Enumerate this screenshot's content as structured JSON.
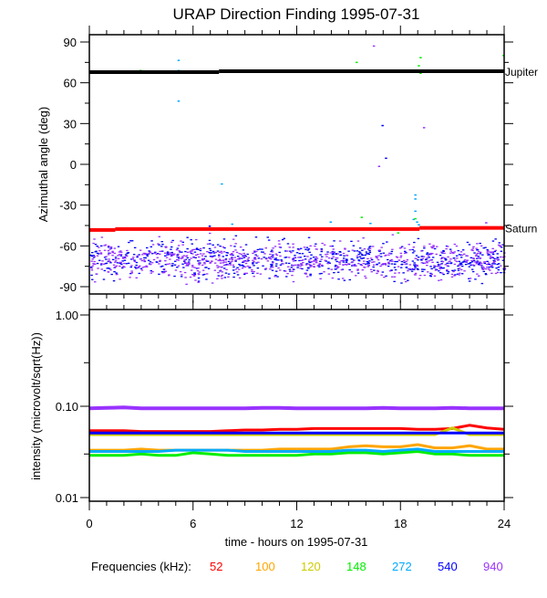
{
  "chart_data": [
    {
      "type": "scatter",
      "title": "URAP Direction Finding  1995-07-31",
      "xlabel": "",
      "ylabel": "Azimuthal angle (deg)",
      "xlim": [
        0,
        24
      ],
      "ylim": [
        -90,
        90
      ],
      "yticks": [
        "90",
        "60",
        "30",
        "0",
        "-30",
        "-60",
        "-90"
      ],
      "reference_lines": [
        {
          "name": "Jupiter",
          "color": "#000000",
          "segments": [
            [
              0,
              7.5,
              67.8
            ],
            [
              7.5,
              24,
              68.5
            ]
          ]
        },
        {
          "name": "Saturn",
          "color": "#ff0000",
          "segments": [
            [
              0,
              1.5,
              -48.3
            ],
            [
              1.5,
              19.1,
              -47.6
            ],
            [
              19.1,
              24,
              -46.8
            ]
          ]
        }
      ],
      "scatter_cluster": {
        "series": [
          "540",
          "940"
        ],
        "x_range": [
          0,
          24
        ],
        "center": -70,
        "spread": 9,
        "count_per_series": 700
      },
      "outlier_points": [
        {
          "series": "148",
          "x": 2.9,
          "y": 69.5
        },
        {
          "series": "272",
          "x": 5.1,
          "y": 77
        },
        {
          "series": "272",
          "x": 5.1,
          "y": 69.5
        },
        {
          "series": "272",
          "x": 5.1,
          "y": 47
        },
        {
          "series": "272",
          "x": 7.6,
          "y": -14
        },
        {
          "series": "148",
          "x": 15.4,
          "y": 75.5
        },
        {
          "series": "148",
          "x": 15.4,
          "y": 69.5
        },
        {
          "series": "940",
          "x": 16.4,
          "y": 87.5
        },
        {
          "series": "540",
          "x": 16.9,
          "y": 29
        },
        {
          "series": "540",
          "x": 17.1,
          "y": 5
        },
        {
          "series": "940",
          "x": 16.7,
          "y": -1
        },
        {
          "series": "940",
          "x": 19.3,
          "y": 27.5
        },
        {
          "series": "148",
          "x": 19.1,
          "y": 79
        },
        {
          "series": "148",
          "x": 19.0,
          "y": 73
        },
        {
          "series": "148",
          "x": 19.1,
          "y": 67.5
        },
        {
          "series": "272",
          "x": 18.8,
          "y": -22
        },
        {
          "series": "272",
          "x": 18.8,
          "y": -25
        },
        {
          "series": "272",
          "x": 18.8,
          "y": -34
        },
        {
          "series": "272",
          "x": 18.7,
          "y": -40
        },
        {
          "series": "272",
          "x": 18.9,
          "y": -42
        },
        {
          "series": "272",
          "x": 19.0,
          "y": -44
        },
        {
          "series": "148",
          "x": 18.8,
          "y": -39.5
        },
        {
          "series": "148",
          "x": 17.8,
          "y": -50
        },
        {
          "series": "148",
          "x": 15.7,
          "y": -38.5
        },
        {
          "series": "272",
          "x": 16.2,
          "y": -43
        },
        {
          "series": "272",
          "x": 13.9,
          "y": -42
        },
        {
          "series": "272",
          "x": 8.2,
          "y": -43.5
        },
        {
          "series": "540",
          "x": 6.9,
          "y": -45
        },
        {
          "series": "940",
          "x": 22.9,
          "y": -42.5
        },
        {
          "series": "148",
          "x": 23.9,
          "y": 80.5
        }
      ],
      "right_labels": [
        "Jupiter",
        "Saturn"
      ]
    },
    {
      "type": "line",
      "xlabel": "time - hours on 1995-07-31",
      "ylabel": "intensity (microvolt/sqrt(Hz))",
      "xlim": [
        0,
        24
      ],
      "ylim": [
        0.01,
        1.0
      ],
      "yscale": "log",
      "xticks": [
        "0",
        "6",
        "12",
        "18",
        "24"
      ],
      "yticks": [
        "1.00",
        "0.10",
        "0.01"
      ],
      "x": [
        0,
        1,
        2,
        3,
        4,
        5,
        6,
        7,
        8,
        9,
        10,
        11,
        12,
        13,
        14,
        15,
        16,
        17,
        18,
        19,
        20,
        21,
        22,
        23,
        24
      ],
      "series": [
        {
          "name": "52",
          "color": "#ff0000",
          "values": [
            0.054,
            0.054,
            0.054,
            0.053,
            0.053,
            0.053,
            0.053,
            0.053,
            0.054,
            0.055,
            0.055,
            0.056,
            0.056,
            0.057,
            0.057,
            0.057,
            0.057,
            0.057,
            0.057,
            0.056,
            0.056,
            0.057,
            0.062,
            0.058,
            0.056
          ]
        },
        {
          "name": "100",
          "color": "#ffa500",
          "values": [
            0.033,
            0.033,
            0.033,
            0.034,
            0.033,
            0.033,
            0.033,
            0.033,
            0.033,
            0.033,
            0.033,
            0.034,
            0.034,
            0.034,
            0.034,
            0.036,
            0.037,
            0.036,
            0.036,
            0.038,
            0.035,
            0.035,
            0.037,
            0.034,
            0.034
          ]
        },
        {
          "name": "120",
          "color": "#cccc00",
          "values": [
            0.049,
            0.049,
            0.049,
            0.049,
            0.049,
            0.049,
            0.049,
            0.049,
            0.049,
            0.049,
            0.049,
            0.049,
            0.049,
            0.049,
            0.049,
            0.049,
            0.049,
            0.049,
            0.049,
            0.049,
            0.049,
            0.058,
            0.049,
            0.049,
            0.049
          ]
        },
        {
          "name": "148",
          "color": "#00ee00",
          "values": [
            0.029,
            0.029,
            0.029,
            0.03,
            0.029,
            0.029,
            0.031,
            0.03,
            0.029,
            0.029,
            0.029,
            0.029,
            0.029,
            0.03,
            0.03,
            0.031,
            0.031,
            0.03,
            0.031,
            0.032,
            0.03,
            0.03,
            0.029,
            0.029,
            0.029
          ]
        },
        {
          "name": "272",
          "color": "#00aaff",
          "values": [
            0.032,
            0.032,
            0.032,
            0.032,
            0.032,
            0.033,
            0.033,
            0.033,
            0.033,
            0.032,
            0.032,
            0.032,
            0.032,
            0.032,
            0.032,
            0.033,
            0.033,
            0.032,
            0.033,
            0.034,
            0.032,
            0.032,
            0.032,
            0.032,
            0.032
          ]
        },
        {
          "name": "540",
          "color": "#0000ff",
          "values": [
            0.051,
            0.051,
            0.051,
            0.051,
            0.051,
            0.051,
            0.051,
            0.051,
            0.051,
            0.051,
            0.051,
            0.051,
            0.051,
            0.051,
            0.051,
            0.051,
            0.051,
            0.051,
            0.051,
            0.051,
            0.051,
            0.051,
            0.051,
            0.051,
            0.051
          ]
        },
        {
          "name": "940",
          "color": "#9933ff",
          "values": [
            0.095,
            0.096,
            0.097,
            0.095,
            0.095,
            0.095,
            0.095,
            0.095,
            0.095,
            0.095,
            0.096,
            0.096,
            0.095,
            0.095,
            0.095,
            0.095,
            0.095,
            0.096,
            0.095,
            0.095,
            0.095,
            0.096,
            0.095,
            0.095,
            0.095
          ]
        }
      ]
    }
  ],
  "legend": {
    "label": "Frequencies (kHz):",
    "items": [
      {
        "label": "52",
        "color": "#ff0000"
      },
      {
        "label": "100",
        "color": "#ffa500"
      },
      {
        "label": "120",
        "color": "#cccc00"
      },
      {
        "label": "148",
        "color": "#00ee00"
      },
      {
        "label": "272",
        "color": "#00aaff"
      },
      {
        "label": "540",
        "color": "#0000ff"
      },
      {
        "label": "940",
        "color": "#9933ff"
      }
    ]
  }
}
